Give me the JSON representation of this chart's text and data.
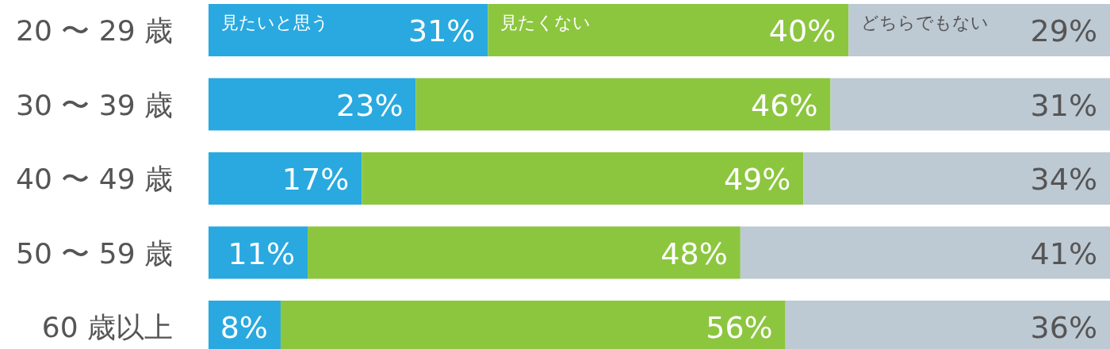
{
  "chart_data": {
    "type": "bar",
    "orientation": "horizontal",
    "stacked": true,
    "xlim": [
      0,
      100
    ],
    "tick_labels": "y",
    "categories": [
      "20 〜 29 歳",
      "30 〜 39 歳",
      "40 〜 49 歳",
      "50 〜 59 歳",
      "60 歳以上"
    ],
    "series": [
      {
        "name": "見たいと思う",
        "color": "#29a9e0",
        "values": [
          31,
          23,
          17,
          11,
          8
        ],
        "value_labels": [
          "31%",
          "23%",
          "17%",
          "11%",
          "8%"
        ]
      },
      {
        "name": "見たくない",
        "color": "#8cc63f",
        "values": [
          40,
          46,
          49,
          48,
          56
        ],
        "value_labels": [
          "40%",
          "46%",
          "49%",
          "48%",
          "56%"
        ]
      },
      {
        "name": "どちらでもない",
        "color": "#bdc9d3",
        "values": [
          29,
          31,
          34,
          41,
          36
        ],
        "value_labels": [
          "29%",
          "31%",
          "34%",
          "41%",
          "36%"
        ]
      }
    ]
  }
}
